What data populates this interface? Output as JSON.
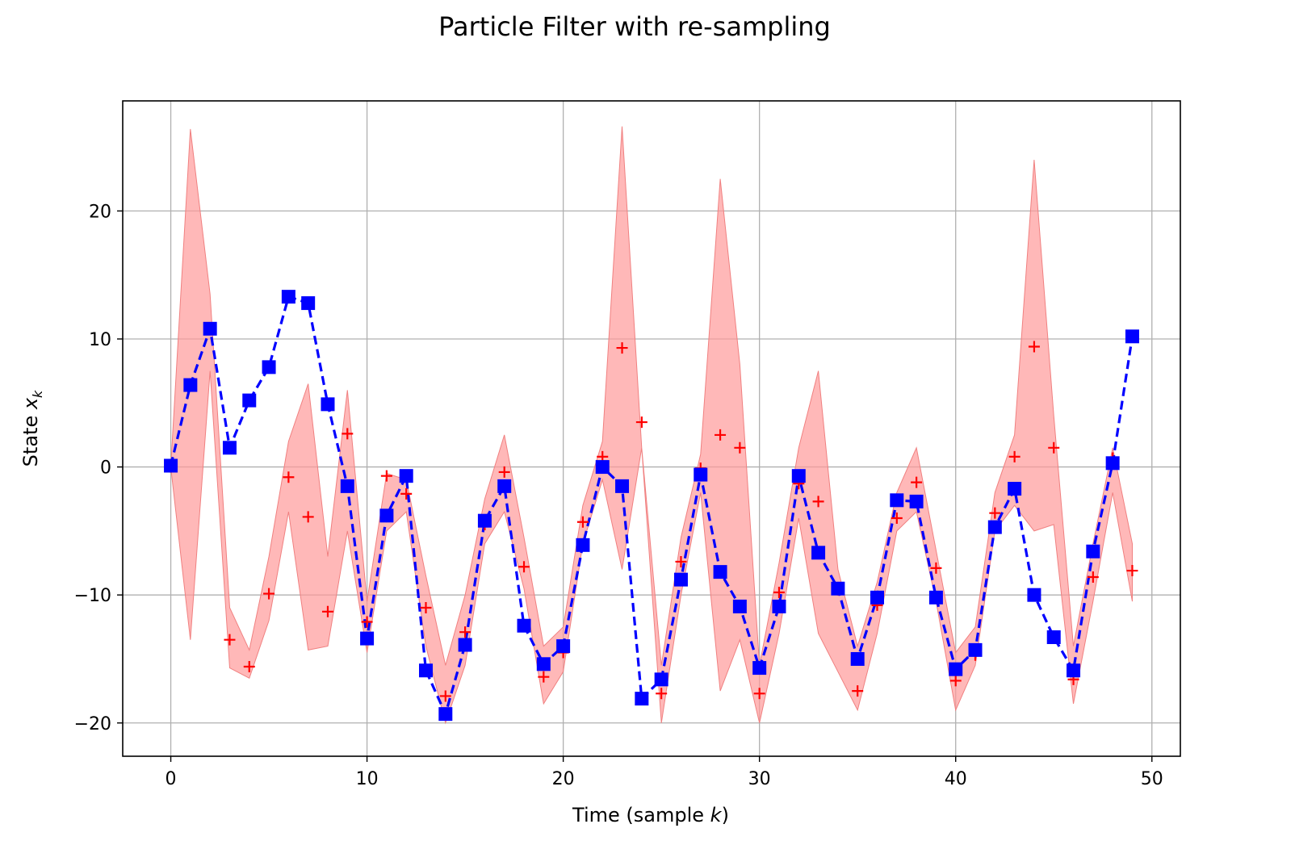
{
  "chart_data": {
    "type": "line",
    "title": "Particle Filter with re-sampling",
    "xlabel": "Time (sample k)",
    "ylabel": "State x_k",
    "xlim": [
      -2.45,
      51.45
    ],
    "ylim": [
      -22.6,
      28.6
    ],
    "xticks": [
      0,
      10,
      20,
      30,
      40,
      50
    ],
    "yticks": [
      -20,
      -10,
      0,
      10,
      20
    ],
    "grid": true,
    "colors": {
      "true_state": "#0000ff",
      "measurement": "#ff0000",
      "band_fill": "#ff9a9a",
      "band_edge": "#f08080",
      "grid": "#b0b0b0"
    },
    "x": [
      0,
      1,
      2,
      3,
      4,
      5,
      6,
      7,
      8,
      9,
      10,
      11,
      12,
      13,
      14,
      15,
      16,
      17,
      18,
      19,
      20,
      21,
      22,
      23,
      24,
      25,
      26,
      27,
      28,
      29,
      30,
      31,
      32,
      33,
      34,
      35,
      36,
      37,
      38,
      39,
      40,
      41,
      42,
      43,
      44,
      45,
      46,
      47,
      48,
      49
    ],
    "series": [
      {
        "marker": "square",
        "linestyle": "dashed",
        "values": [
          0.1,
          6.4,
          10.8,
          1.5,
          5.2,
          7.8,
          13.3,
          12.8,
          4.9,
          -1.5,
          -13.4,
          -3.8,
          -0.7,
          -15.9,
          -19.3,
          -13.9,
          -4.2,
          -1.5,
          -12.4,
          -15.4,
          -14.0,
          -6.1,
          0.0,
          -1.5,
          -18.1,
          -16.6,
          -8.8,
          -0.6,
          -8.2,
          -10.9,
          -15.7,
          -10.9,
          -0.7,
          -6.7,
          -9.5,
          -15.0,
          -10.2,
          -2.6,
          -2.7,
          -10.2,
          -15.8,
          -14.3,
          -4.7,
          -1.7,
          -10.0,
          -13.3,
          -15.9,
          -6.6,
          0.3,
          10.2
        ]
      },
      {
        "marker": "plus",
        "linestyle": "none",
        "values": [
          0.0,
          6.5,
          10.8,
          -13.5,
          -15.6,
          -9.9,
          -0.8,
          -3.9,
          -11.3,
          2.6,
          -12.1,
          -0.7,
          -2.1,
          -11.0,
          -17.9,
          -12.9,
          -4.5,
          -0.4,
          -7.8,
          -16.4,
          -14.5,
          -4.3,
          0.8,
          9.3,
          3.5,
          -17.7,
          -7.4,
          -0.1,
          2.5,
          1.5,
          -17.7,
          -9.8,
          -1.3,
          -2.7,
          -9.6,
          -17.5,
          -10.8,
          -4.0,
          -1.2,
          -7.9,
          -16.7,
          -14.7,
          -3.6,
          0.8,
          9.4,
          1.5,
          -16.6,
          -8.6,
          0.7,
          -8.1
        ]
      }
    ],
    "band": {
      "upper": [
        0.0,
        26.4,
        13.5,
        -11.0,
        -14.3,
        -7.0,
        2.0,
        6.5,
        -7.0,
        6.0,
        -10.5,
        -0.5,
        -1.0,
        -8.5,
        -15.5,
        -10.0,
        -2.5,
        2.5,
        -5.5,
        -14.0,
        -12.5,
        -3.0,
        2.0,
        26.6,
        1.5,
        -15.5,
        -5.5,
        1.0,
        22.5,
        8.0,
        -15.5,
        -7.5,
        1.5,
        7.5,
        -8.0,
        -14.0,
        -9.0,
        -2.0,
        1.5,
        -6.5,
        -14.5,
        -12.5,
        -2.0,
        2.5,
        24.0,
        4.0,
        -14.0,
        -6.0,
        1.5,
        -6.0
      ],
      "lower": [
        0.0,
        -13.5,
        7.5,
        -15.7,
        -16.5,
        -12.0,
        -3.5,
        -14.3,
        -14.0,
        -5.0,
        -14.5,
        -5.0,
        -3.5,
        -14.0,
        -20.0,
        -15.5,
        -6.0,
        -3.5,
        -9.5,
        -18.5,
        -16.0,
        -6.0,
        -1.0,
        -8.0,
        1.5,
        -20.0,
        -10.0,
        -2.0,
        -17.5,
        -13.5,
        -20.0,
        -13.0,
        -4.0,
        -13.0,
        -16.0,
        -19.0,
        -13.0,
        -5.0,
        -3.5,
        -10.5,
        -19.0,
        -15.5,
        -5.0,
        -3.0,
        -5.0,
        -4.5,
        -18.5,
        -10.5,
        -2.0,
        -10.5
      ]
    }
  }
}
